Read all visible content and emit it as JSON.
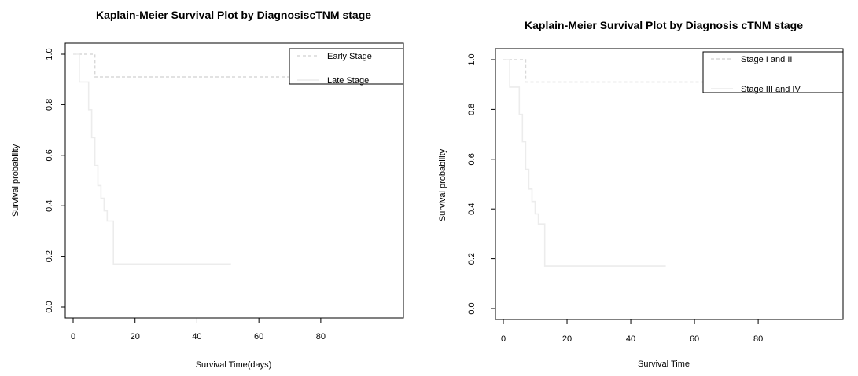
{
  "chart_data": [
    {
      "type": "line",
      "title": "Kaplain-Meier Survival Plot by DiagnosiscTNM stage",
      "xlabel": "Survival Time(days)",
      "ylabel": "Survival probability",
      "xlim": [
        0,
        100
      ],
      "ylim": [
        0,
        1
      ],
      "xticks": [
        "0",
        "20",
        "40",
        "60",
        "80"
      ],
      "yticks": [
        "0.0",
        "0.2",
        "0.4",
        "0.6",
        "0.8",
        "1.0"
      ],
      "legend_position": "top-right",
      "grid": false,
      "series": [
        {
          "name": "Early Stage",
          "color": "#d8d8d8",
          "dash": "dashed",
          "x": [
            0,
            7,
            7,
            100
          ],
          "y": [
            1.0,
            1.0,
            0.91,
            0.91
          ]
        },
        {
          "name": "Late Stage",
          "color": "#ececec",
          "dash": "solid",
          "x": [
            0,
            2,
            2,
            5,
            5,
            6,
            6,
            7,
            7,
            8,
            8,
            9,
            9,
            10,
            10,
            11,
            11,
            13,
            13,
            51
          ],
          "y": [
            1.0,
            1.0,
            0.89,
            0.89,
            0.78,
            0.78,
            0.67,
            0.67,
            0.56,
            0.56,
            0.48,
            0.48,
            0.43,
            0.43,
            0.38,
            0.38,
            0.34,
            0.34,
            0.17,
            0.17
          ]
        }
      ]
    },
    {
      "type": "line",
      "title": "Kaplain-Meier Survival Plot by Diagnosis cTNM stage",
      "xlabel": "Survival Time",
      "ylabel": "Survival probability",
      "xlim": [
        0,
        100
      ],
      "ylim": [
        0,
        1
      ],
      "xticks": [
        "0",
        "20",
        "40",
        "60",
        "80"
      ],
      "yticks": [
        "0.0",
        "0.2",
        "0.4",
        "0.6",
        "0.8",
        "1.0"
      ],
      "legend_position": "top-right",
      "grid": false,
      "series": [
        {
          "name": "Stage I and II",
          "color": "#d8d8d8",
          "dash": "dashed",
          "x": [
            0,
            7,
            7,
            100
          ],
          "y": [
            1.0,
            1.0,
            0.91,
            0.91
          ]
        },
        {
          "name": "Stage III and IV",
          "color": "#ececec",
          "dash": "solid",
          "x": [
            0,
            2,
            2,
            5,
            5,
            6,
            6,
            7,
            7,
            8,
            8,
            9,
            9,
            10,
            10,
            11,
            11,
            13,
            13,
            51
          ],
          "y": [
            1.0,
            1.0,
            0.89,
            0.89,
            0.78,
            0.78,
            0.67,
            0.67,
            0.56,
            0.56,
            0.48,
            0.48,
            0.43,
            0.43,
            0.38,
            0.38,
            0.34,
            0.34,
            0.17,
            0.17
          ]
        }
      ]
    }
  ]
}
